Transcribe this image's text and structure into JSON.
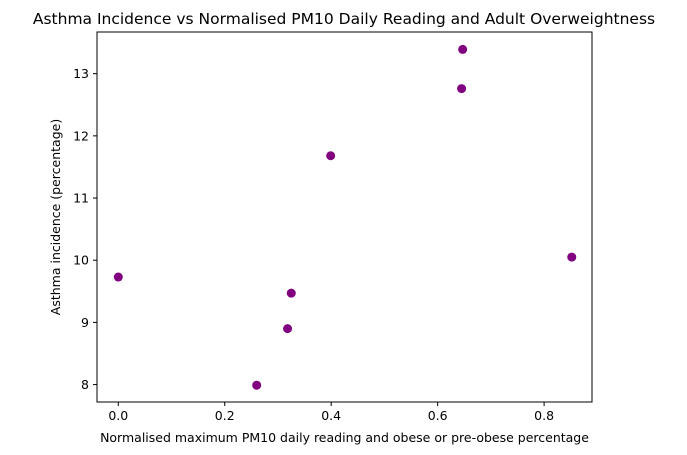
{
  "chart_data": {
    "type": "scatter",
    "title": "Asthma Incidence vs Normalised PM10 Daily Reading and Adult Overweightness",
    "xlabel": "Normalised maximum PM10 daily reading and obese or pre-obese percentage",
    "ylabel": "Asthma incidence (percentage)",
    "xlim": [
      -0.04,
      0.89
    ],
    "ylim": [
      7.72,
      13.67
    ],
    "xticks": [
      0.0,
      0.2,
      0.4,
      0.6,
      0.8
    ],
    "xtick_labels": [
      "0.0",
      "0.2",
      "0.4",
      "0.6",
      "0.8"
    ],
    "yticks": [
      8,
      9,
      10,
      11,
      12,
      13
    ],
    "ytick_labels": [
      "8",
      "9",
      "10",
      "11",
      "12",
      "13"
    ],
    "grid": false,
    "marker_color": "#800080",
    "points": [
      {
        "x": 0.0,
        "y": 9.73
      },
      {
        "x": 0.26,
        "y": 7.99
      },
      {
        "x": 0.318,
        "y": 8.9
      },
      {
        "x": 0.325,
        "y": 9.47
      },
      {
        "x": 0.399,
        "y": 11.68
      },
      {
        "x": 0.645,
        "y": 12.76
      },
      {
        "x": 0.647,
        "y": 13.39
      },
      {
        "x": 0.852,
        "y": 10.05
      }
    ]
  }
}
